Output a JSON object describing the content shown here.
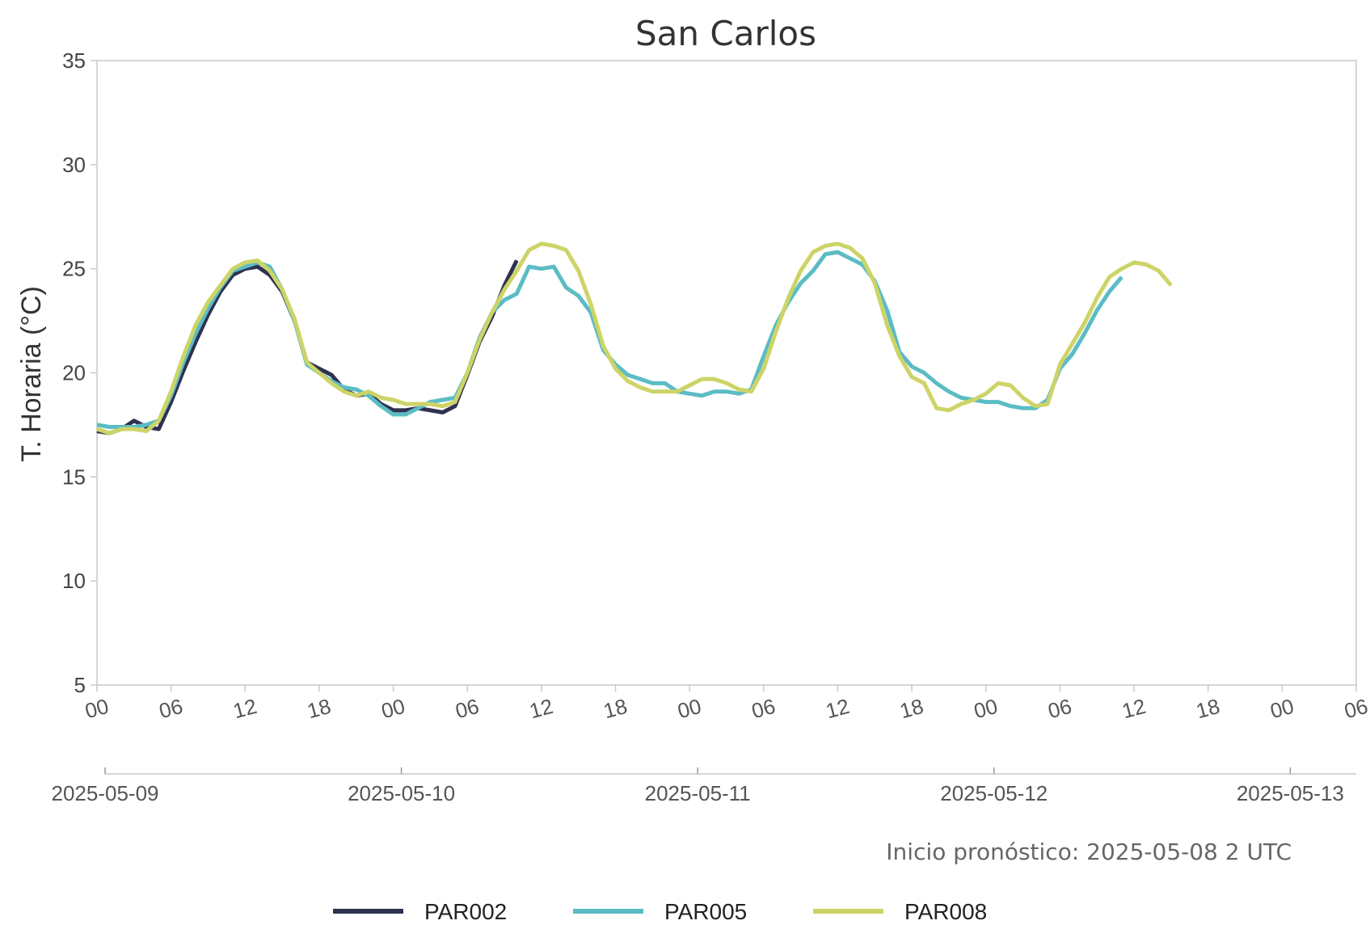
{
  "chart_data": {
    "type": "line",
    "title": "San Carlos",
    "ylabel": "T. Horaria (°C)",
    "xlabel": "",
    "ylim": [
      5,
      35
    ],
    "yticks": [
      5,
      10,
      15,
      20,
      25,
      30,
      35
    ],
    "x_range_hours": [
      0,
      102
    ],
    "hour_ticks": [
      "00",
      "06",
      "12",
      "18",
      "00",
      "06",
      "12",
      "18",
      "00",
      "06",
      "12",
      "18",
      "00",
      "06",
      "12",
      "18",
      "00",
      "06"
    ],
    "date_ticks": [
      "2025-05-09",
      "2025-05-10",
      "2025-05-11",
      "2025-05-12",
      "2025-05-13"
    ],
    "grid": false,
    "legend_position": "bottom",
    "annotation": "Inicio pronóstico: 2025-05-08 2 UTC",
    "series": [
      {
        "name": "PAR002",
        "color": "#2e3250",
        "start_hour": 0,
        "values": [
          17.2,
          17.1,
          17.3,
          17.7,
          17.4,
          17.3,
          18.6,
          20.1,
          21.5,
          22.8,
          23.9,
          24.7,
          25.0,
          25.1,
          24.7,
          23.9,
          22.5,
          20.5,
          20.2,
          19.9,
          19.2,
          18.9,
          19.0,
          18.5,
          18.2,
          18.2,
          18.3,
          18.2,
          18.1,
          18.4,
          19.9,
          21.5,
          22.7,
          24.2,
          25.4
        ]
      },
      {
        "name": "PAR005",
        "color": "#5bbcc4",
        "start_hour": 0,
        "values": [
          17.5,
          17.4,
          17.4,
          17.4,
          17.5,
          17.7,
          18.9,
          20.5,
          21.9,
          23.1,
          24.1,
          24.9,
          25.1,
          25.3,
          25.1,
          24.0,
          22.5,
          20.4,
          20.0,
          19.6,
          19.3,
          19.2,
          18.9,
          18.4,
          18.0,
          18.0,
          18.3,
          18.6,
          18.7,
          18.8,
          20.0,
          21.7,
          22.9,
          23.5,
          23.8,
          25.1,
          25.0,
          25.1,
          24.1,
          23.7,
          22.9,
          21.1,
          20.4,
          19.9,
          19.7,
          19.5,
          19.5,
          19.1,
          19.0,
          18.9,
          19.1,
          19.1,
          19.0,
          19.2,
          20.8,
          22.3,
          23.4,
          24.3,
          24.9,
          25.7,
          25.8,
          25.5,
          25.2,
          24.4,
          23.0,
          21.0,
          20.3,
          20.0,
          19.5,
          19.1,
          18.8,
          18.7,
          18.6,
          18.6,
          18.4,
          18.3,
          18.3,
          18.7,
          20.2,
          20.9,
          21.9,
          23.0,
          23.9,
          24.6
        ]
      },
      {
        "name": "PAR008",
        "color": "#cdd467",
        "start_hour": 0,
        "values": [
          17.3,
          17.1,
          17.3,
          17.3,
          17.2,
          17.7,
          19.1,
          20.8,
          22.3,
          23.4,
          24.2,
          25.0,
          25.3,
          25.4,
          24.9,
          24.0,
          22.6,
          20.5,
          20.0,
          19.5,
          19.1,
          18.9,
          19.1,
          18.8,
          18.7,
          18.5,
          18.5,
          18.5,
          18.4,
          18.6,
          20.0,
          21.6,
          22.9,
          24.0,
          24.9,
          25.9,
          26.2,
          26.1,
          25.9,
          24.9,
          23.3,
          21.3,
          20.2,
          19.6,
          19.3,
          19.1,
          19.1,
          19.1,
          19.4,
          19.7,
          19.7,
          19.5,
          19.2,
          19.1,
          20.2,
          22.0,
          23.6,
          24.9,
          25.8,
          26.1,
          26.2,
          26.0,
          25.5,
          24.3,
          22.3,
          20.8,
          19.8,
          19.5,
          18.3,
          18.2,
          18.5,
          18.7,
          19.0,
          19.5,
          19.4,
          18.8,
          18.4,
          18.5,
          20.4,
          21.4,
          22.4,
          23.6,
          24.6,
          25.0,
          25.3,
          25.2,
          24.9,
          24.2
        ]
      }
    ]
  }
}
